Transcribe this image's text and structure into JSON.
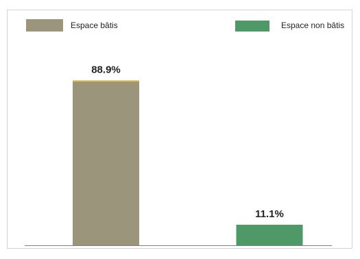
{
  "chart_data": {
    "type": "bar",
    "categories": [
      "Espace bâtis",
      "Espace non bâtis"
    ],
    "values": [
      88.9,
      11.1
    ],
    "value_labels": [
      "88.9%",
      "11.1%"
    ],
    "ylim": [
      0,
      100
    ],
    "grid": false,
    "legend_placement": "top",
    "colors": [
      "#9b957b",
      "#4f9868"
    ],
    "top_edge_color": "#e2b23a",
    "frame_color": "#d4d4d4",
    "axis_color": "#7f7f7f"
  }
}
